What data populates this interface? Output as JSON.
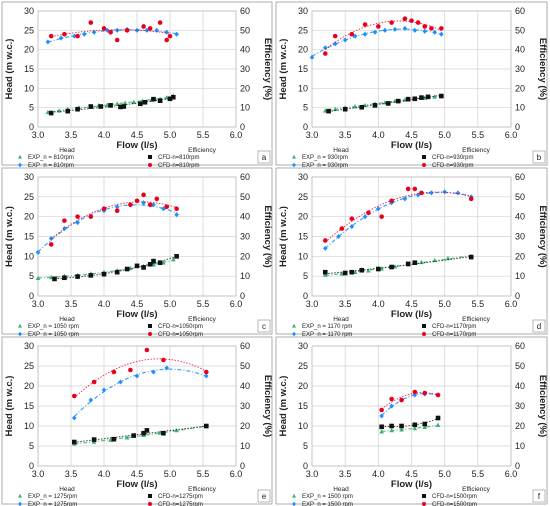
{
  "chart_data": [
    {
      "panel": "a",
      "type": "scatter",
      "xlabel": "Flow (l/s)",
      "ylabel": "Head (m w.c.)",
      "y2label": "Efficiency (%)",
      "xlim": [
        3.0,
        6.0
      ],
      "ylim": [
        0,
        30
      ],
      "y2lim": [
        0,
        60
      ],
      "legend_titles": [
        "Head",
        "Efficiency"
      ],
      "series": [
        {
          "name": "EXP_n = 810rpm",
          "axis": "head",
          "marker": "triangle",
          "color": "#3cb371",
          "x": [
            3.15,
            3.32,
            3.45,
            3.62,
            3.8,
            3.92,
            4.05,
            4.2,
            4.32,
            4.45,
            4.58,
            4.72,
            4.85,
            4.95,
            5.05
          ],
          "y": [
            3.8,
            4.2,
            4.6,
            5.0,
            5.3,
            5.6,
            5.7,
            6.0,
            6.2,
            6.4,
            6.7,
            7.0,
            7.2,
            7.6,
            8.0
          ]
        },
        {
          "name": "EXP_n = 810rpm",
          "axis": "eff",
          "marker": "diamond",
          "color": "#1e90ff",
          "x": [
            3.15,
            3.35,
            3.55,
            3.7,
            3.85,
            4.05,
            4.2,
            4.35,
            4.5,
            4.65,
            4.8,
            4.95,
            5.1
          ],
          "y": [
            44,
            46,
            47,
            48,
            49,
            50,
            50,
            50.5,
            50,
            50,
            50,
            49,
            48
          ]
        },
        {
          "name": "CFD-n=810rpm",
          "axis": "head",
          "marker": "square",
          "color": "#111111",
          "x": [
            3.2,
            3.45,
            3.6,
            3.8,
            3.95,
            4.1,
            4.25,
            4.3,
            4.55,
            4.62,
            4.75,
            4.85,
            5.0,
            5.05
          ],
          "y": [
            3.6,
            4.1,
            4.6,
            5.3,
            5.3,
            5.6,
            5.2,
            5.3,
            6.0,
            6.4,
            7.2,
            6.8,
            7.3,
            7.7
          ]
        },
        {
          "name": "CFD-n=810rpm",
          "axis": "eff",
          "marker": "circle",
          "color": "#e8001c",
          "x": [
            3.2,
            3.4,
            3.6,
            3.8,
            4.0,
            4.1,
            4.2,
            4.35,
            4.6,
            4.7,
            4.85,
            4.95,
            5.0
          ],
          "y": [
            47,
            48,
            47,
            54,
            51,
            49,
            45,
            50,
            52,
            51,
            54,
            45,
            47
          ]
        }
      ]
    },
    {
      "panel": "b",
      "type": "scatter",
      "xlabel": "Flow (l/s)",
      "ylabel": "Head (m w.c.)",
      "y2label": "Efficiency (%)",
      "xlim": [
        3.0,
        6.0
      ],
      "ylim": [
        0,
        30
      ],
      "y2lim": [
        0,
        60
      ],
      "legend_titles": [
        "Head",
        "Efficiency"
      ],
      "series": [
        {
          "name": "EXP_n = 930rpm",
          "axis": "head",
          "marker": "triangle",
          "color": "#3cb371",
          "x": [
            3.2,
            3.35,
            3.5,
            3.65,
            3.8,
            3.95,
            4.1,
            4.25,
            4.4,
            4.55,
            4.7,
            4.85,
            4.95
          ],
          "y": [
            4.2,
            4.6,
            5.0,
            5.3,
            5.6,
            6.0,
            6.3,
            6.7,
            7.0,
            7.3,
            7.5,
            7.8,
            8.0
          ]
        },
        {
          "name": "EXP_n = 930rpm",
          "axis": "eff",
          "marker": "diamond",
          "color": "#1e90ff",
          "x": [
            3.0,
            3.2,
            3.35,
            3.5,
            3.65,
            3.8,
            3.95,
            4.1,
            4.25,
            4.4,
            4.55,
            4.7,
            4.85,
            4.95
          ],
          "y": [
            36,
            41,
            43,
            45,
            47,
            48,
            49,
            50,
            50.5,
            51,
            50,
            49.5,
            49,
            48
          ]
        },
        {
          "name": "CFD-n=930rpm",
          "axis": "head",
          "marker": "square",
          "color": "#111111",
          "x": [
            3.25,
            3.5,
            3.75,
            3.95,
            4.15,
            4.3,
            4.45,
            4.55,
            4.65,
            4.75,
            4.95
          ],
          "y": [
            4.1,
            4.6,
            5.1,
            5.6,
            6.1,
            6.7,
            7.2,
            7.3,
            7.6,
            7.8,
            8.0
          ]
        },
        {
          "name": "CFD-n=930rpm",
          "axis": "eff",
          "marker": "circle",
          "color": "#e8001c",
          "x": [
            3.2,
            3.35,
            3.6,
            3.8,
            4.0,
            4.2,
            4.4,
            4.5,
            4.6,
            4.7,
            4.8,
            4.95
          ],
          "y": [
            38,
            47,
            48,
            53,
            52,
            54,
            56,
            55,
            54,
            52,
            51,
            51
          ]
        }
      ]
    },
    {
      "panel": "c",
      "type": "scatter",
      "xlabel": "Flow (l/s)",
      "ylabel": "Head (m w.c.)",
      "y2label": "Efficiency (%)",
      "xlim": [
        3.0,
        6.0
      ],
      "ylim": [
        0,
        30
      ],
      "y2lim": [
        0,
        60
      ],
      "legend_titles": [
        "Head",
        "Efficiency"
      ],
      "series": [
        {
          "name": "EXP_n = 1050 rpm",
          "axis": "head",
          "marker": "triangle",
          "color": "#3cb371",
          "x": [
            3.0,
            3.2,
            3.4,
            3.6,
            3.8,
            4.0,
            4.2,
            4.4,
            4.6,
            4.75,
            4.9,
            5.05
          ],
          "y": [
            4.5,
            4.7,
            5.0,
            5.2,
            5.6,
            6.0,
            6.4,
            7.0,
            7.5,
            7.9,
            8.4,
            9.2
          ]
        },
        {
          "name": "EXP_n = 1050 rpm",
          "axis": "eff",
          "marker": "diamond",
          "color": "#1e90ff",
          "x": [
            3.0,
            3.2,
            3.4,
            3.6,
            3.8,
            4.0,
            4.2,
            4.4,
            4.6,
            4.75,
            4.9,
            5.1
          ],
          "y": [
            22,
            29,
            34,
            37,
            40,
            43,
            45,
            46,
            47,
            46,
            44,
            41
          ]
        },
        {
          "name": "CFD-n=1050rpm",
          "axis": "head",
          "marker": "square",
          "color": "#111111",
          "x": [
            3.25,
            3.4,
            3.6,
            3.8,
            4.0,
            4.2,
            4.35,
            4.5,
            4.6,
            4.7,
            4.75,
            4.85,
            5.1
          ],
          "y": [
            4.3,
            4.6,
            4.9,
            5.2,
            5.5,
            6.0,
            6.8,
            7.6,
            7.2,
            8.0,
            8.8,
            8.4,
            10.0
          ]
        },
        {
          "name": "CFD-n=1050rpm",
          "axis": "eff",
          "marker": "circle",
          "color": "#e8001c",
          "x": [
            3.2,
            3.4,
            3.6,
            3.8,
            4.0,
            4.2,
            4.4,
            4.5,
            4.6,
            4.7,
            4.8,
            4.95,
            5.1
          ],
          "y": [
            26,
            38,
            40,
            40,
            44,
            43,
            46,
            48,
            51,
            46,
            49,
            45,
            44
          ]
        }
      ]
    },
    {
      "panel": "d",
      "type": "scatter",
      "xlabel": "Flow (l/s)",
      "ylabel": "Head (m w.c.)",
      "y2label": "Efficiency (%)",
      "xlim": [
        3.0,
        6.0
      ],
      "ylim": [
        0,
        30
      ],
      "y2lim": [
        0,
        60
      ],
      "legend_titles": [
        "Head",
        "Efficiency"
      ],
      "series": [
        {
          "name": "EXP_n = 1170 rpm",
          "axis": "head",
          "marker": "triangle",
          "color": "#3cb371",
          "x": [
            3.2,
            3.45,
            3.65,
            3.85,
            4.05,
            4.25,
            4.45,
            4.65,
            4.85,
            5.05,
            5.4
          ],
          "y": [
            5.3,
            5.6,
            6.0,
            6.4,
            6.9,
            7.4,
            7.9,
            8.5,
            9.0,
            9.5,
            10.0
          ]
        },
        {
          "name": "EXP_n = 1170 rpm",
          "axis": "eff",
          "marker": "diamond",
          "color": "#1e90ff",
          "x": [
            3.2,
            3.4,
            3.6,
            3.8,
            4.0,
            4.2,
            4.4,
            4.6,
            4.8,
            5.0,
            5.2,
            5.4
          ],
          "y": [
            24,
            30,
            35,
            40,
            44,
            47,
            49,
            51,
            52,
            52.5,
            52,
            50
          ]
        },
        {
          "name": "CFD-n=1170rpm",
          "axis": "head",
          "marker": "square",
          "color": "#111111",
          "x": [
            3.2,
            3.5,
            3.6,
            3.75,
            4.0,
            4.2,
            4.45,
            4.55,
            5.4
          ],
          "y": [
            6.0,
            5.8,
            6.0,
            6.5,
            6.8,
            7.3,
            8.1,
            8.4,
            9.8
          ]
        },
        {
          "name": "CFD-n=1170rpm",
          "axis": "eff",
          "marker": "circle",
          "color": "#e8001c",
          "x": [
            3.2,
            3.45,
            3.6,
            3.85,
            4.05,
            4.2,
            4.45,
            4.55,
            4.65,
            5.4
          ],
          "y": [
            28,
            34,
            39,
            42,
            40,
            48,
            54,
            54,
            52,
            49
          ]
        }
      ]
    },
    {
      "panel": "e",
      "type": "scatter",
      "xlabel": "Flow (l/s)",
      "ylabel": "Head (m w.c.)",
      "y2label": "Efficiency (%)",
      "xlim": [
        3.0,
        6.0
      ],
      "ylim": [
        0,
        30
      ],
      "y2lim": [
        0,
        60
      ],
      "legend_titles": [
        "Head",
        "Efficiency"
      ],
      "series": [
        {
          "name": "EXP_n = 1275rpm",
          "axis": "head",
          "marker": "triangle",
          "color": "#3cb371",
          "x": [
            3.55,
            3.85,
            4.1,
            4.35,
            4.6,
            4.85,
            5.1,
            5.55
          ],
          "y": [
            5.6,
            6.0,
            6.5,
            7.1,
            7.7,
            8.3,
            8.9,
            9.9
          ]
        },
        {
          "name": "EXP_n = 1275rpm",
          "axis": "eff",
          "marker": "diamond",
          "color": "#1e90ff",
          "x": [
            3.55,
            3.8,
            4.0,
            4.25,
            4.5,
            4.75,
            4.95,
            5.55
          ],
          "y": [
            24,
            33,
            38,
            42,
            45,
            47,
            49,
            45
          ]
        },
        {
          "name": "CFD-n=1275rpm",
          "axis": "head",
          "marker": "square",
          "color": "#111111",
          "x": [
            3.55,
            3.85,
            4.15,
            4.45,
            4.6,
            4.65,
            4.9,
            5.55
          ],
          "y": [
            6.0,
            6.6,
            6.7,
            7.6,
            8.2,
            8.9,
            8.2,
            10.0
          ]
        },
        {
          "name": "CFD-n=1275rpm",
          "axis": "eff",
          "marker": "circle",
          "color": "#e8001c",
          "x": [
            3.55,
            3.85,
            4.15,
            4.4,
            4.65,
            4.9,
            5.55
          ],
          "y": [
            35,
            42,
            47,
            48,
            58,
            53,
            47
          ]
        }
      ]
    },
    {
      "panel": "f",
      "type": "scatter",
      "xlabel": "Flow (l/s)",
      "ylabel": "Head (m w.c.)",
      "y2label": "Efficiency (%)",
      "xlim": [
        3.0,
        6.0
      ],
      "ylim": [
        0,
        30
      ],
      "y2lim": [
        0,
        60
      ],
      "legend_titles": [
        "Head",
        "Efficiency"
      ],
      "series": [
        {
          "name": "EXP_n = 1500 rpm",
          "axis": "head",
          "marker": "triangle",
          "color": "#3cb371",
          "x": [
            4.05,
            4.2,
            4.35,
            4.55,
            4.7,
            4.9
          ],
          "y": [
            8.6,
            8.9,
            9.1,
            9.4,
            9.7,
            10.2
          ]
        },
        {
          "name": "EXP_n = 1500 rpm",
          "axis": "eff",
          "marker": "diamond",
          "color": "#1e90ff",
          "x": [
            4.05,
            4.2,
            4.35,
            4.55,
            4.7,
            4.9
          ],
          "y": [
            25,
            30,
            33,
            35.5,
            36,
            35.5
          ]
        },
        {
          "name": "CFD-n=1500rpm",
          "axis": "head",
          "marker": "square",
          "color": "#111111",
          "x": [
            4.05,
            4.2,
            4.35,
            4.55,
            4.7,
            4.9
          ],
          "y": [
            9.8,
            10.0,
            10.0,
            10.3,
            10.5,
            12.0
          ]
        },
        {
          "name": "CFD-n=1500rpm",
          "axis": "eff",
          "marker": "circle",
          "color": "#e8001c",
          "x": [
            4.05,
            4.2,
            4.35,
            4.55,
            4.7,
            4.9
          ],
          "y": [
            28,
            33.5,
            33,
            37,
            36.5,
            35.5
          ]
        }
      ]
    }
  ]
}
